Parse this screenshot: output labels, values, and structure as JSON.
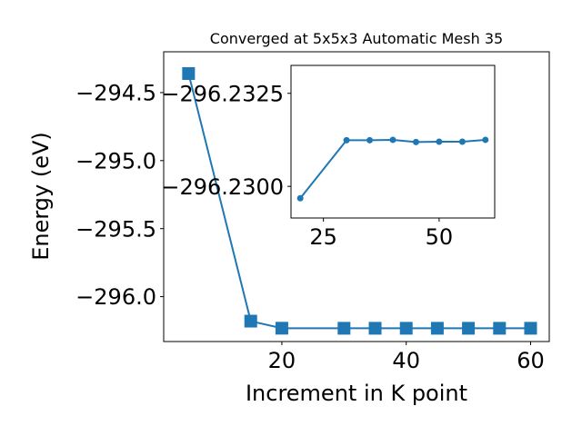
{
  "chart_data": [
    {
      "type": "line",
      "title": "Converged at 5x5x3 Automatic Mesh 35",
      "xlabel": "Increment in K point",
      "ylabel": "Energy (eV)",
      "x": [
        5,
        15,
        20,
        30,
        35,
        40,
        45,
        50,
        55,
        60
      ],
      "series": [
        {
          "values": [
            -294.36,
            -296.18,
            -296.232,
            -296.2325,
            -296.2325,
            -296.2325,
            -296.2325,
            -296.2325,
            -296.2325,
            -296.2325
          ]
        }
      ],
      "xlim": [
        1,
        63
      ],
      "ylim": [
        -296.33,
        -294.2
      ],
      "xticks": [
        "20",
        "40",
        "60"
      ],
      "yticks": [
        "−294.5",
        "−295.0",
        "−295.5",
        "−296.0"
      ],
      "xtick_values": [
        20,
        40,
        60
      ],
      "ytick_values": [
        -294.5,
        -295.0,
        -295.5,
        -296.0
      ],
      "marker": "square",
      "color": "#1f77b4",
      "grid": false
    },
    {
      "type": "line",
      "inset": true,
      "x": [
        20,
        30,
        35,
        40,
        45,
        50,
        55,
        60
      ],
      "series": [
        {
          "values": [
            -296.22968,
            -296.23124,
            -296.23124,
            -296.23125,
            -296.23119,
            -296.2312,
            -296.2312,
            -296.23125
          ]
        }
      ],
      "xlim": [
        18,
        62
      ],
      "ylim": [
        -296.22915,
        -296.23325
      ],
      "xticks": [
        "25",
        "50"
      ],
      "yticks": [
        "−296.2325",
        "−296.2300"
      ],
      "xtick_values": [
        25,
        50
      ],
      "ytick_values": [
        -296.2325,
        -296.23
      ],
      "marker": "circle",
      "color": "#1f77b4",
      "grid": false
    }
  ]
}
